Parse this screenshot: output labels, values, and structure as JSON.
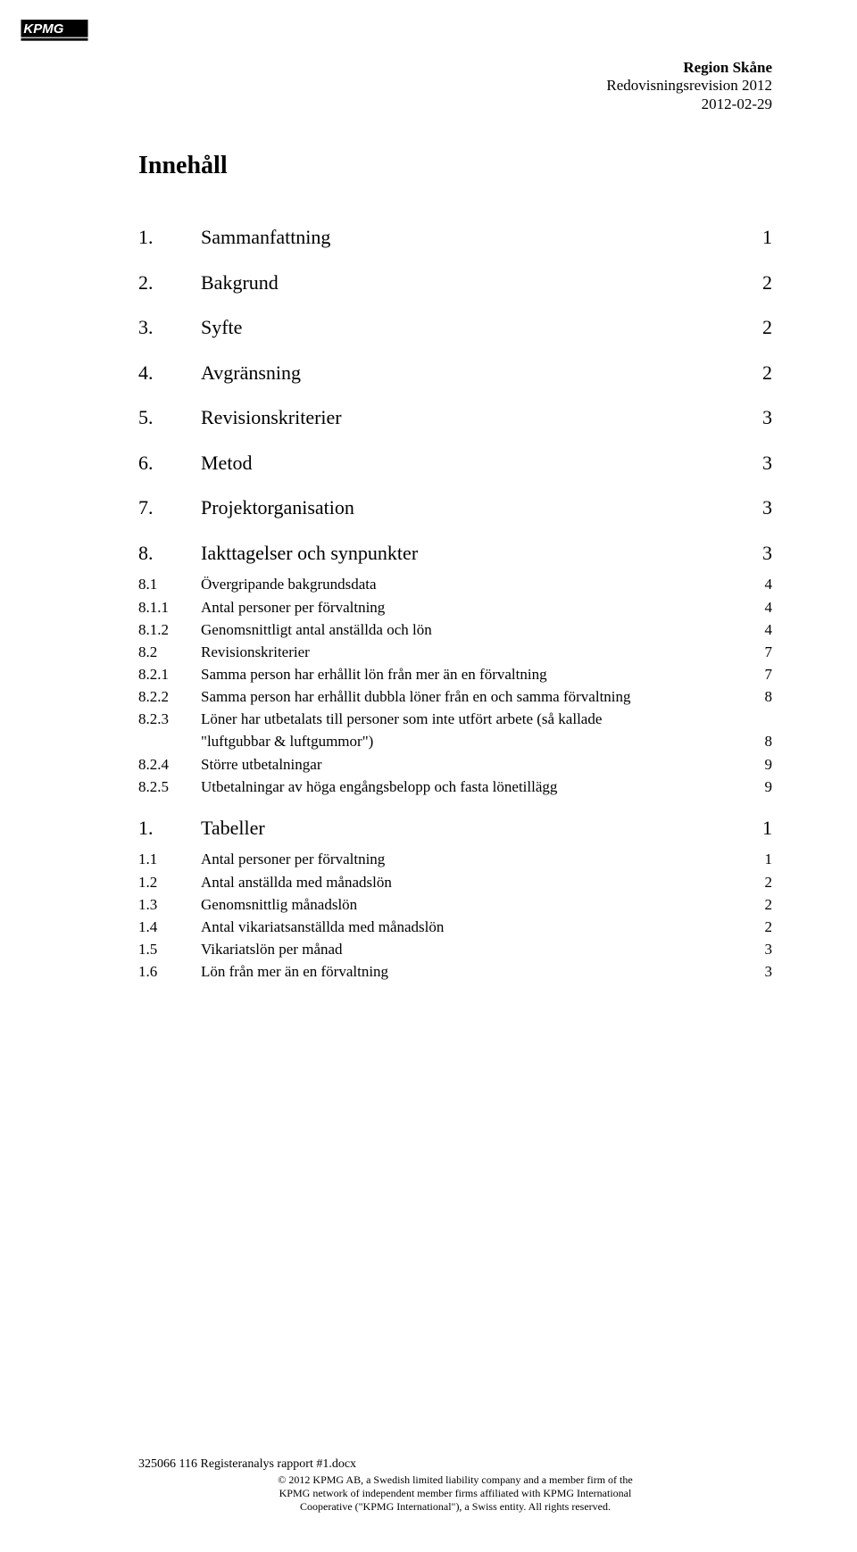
{
  "header": {
    "org": "Region Skåne",
    "report": "Redovisningsrevision 2012",
    "date": "2012-02-29"
  },
  "title": "Innehåll",
  "toc": [
    {
      "level": 1,
      "num": "1.",
      "text": "Sammanfattning",
      "page": "1"
    },
    {
      "level": 1,
      "num": "2.",
      "text": "Bakgrund",
      "page": "2"
    },
    {
      "level": 1,
      "num": "3.",
      "text": "Syfte",
      "page": "2"
    },
    {
      "level": 1,
      "num": "4.",
      "text": "Avgränsning",
      "page": "2"
    },
    {
      "level": 1,
      "num": "5.",
      "text": "Revisionskriterier",
      "page": "3"
    },
    {
      "level": 1,
      "num": "6.",
      "text": "Metod",
      "page": "3"
    },
    {
      "level": 1,
      "num": "7.",
      "text": "Projektorganisation",
      "page": "3"
    },
    {
      "level": 1,
      "num": "8.",
      "text": "Iakttagelser och synpunkter",
      "page": "3"
    },
    {
      "level": 2,
      "num": "8.1",
      "text": "Övergripande bakgrundsdata",
      "page": "4"
    },
    {
      "level": 3,
      "num": "8.1.1",
      "text": "Antal personer per förvaltning",
      "page": "4"
    },
    {
      "level": 3,
      "num": "8.1.2",
      "text": "Genomsnittligt antal anställda och lön",
      "page": "4"
    },
    {
      "level": 2,
      "num": "8.2",
      "text": "Revisionskriterier",
      "page": "7"
    },
    {
      "level": 3,
      "num": "8.2.1",
      "text": "Samma person har erhållit lön från mer än en förvaltning",
      "page": "7"
    },
    {
      "level": 3,
      "num": "8.2.2",
      "text": "Samma person har erhållit dubbla löner från en och samma förvaltning",
      "page": "8"
    },
    {
      "level": 3,
      "num": "8.2.3",
      "text": "Löner har utbetalats till personer som inte utfört arbete (så kallade",
      "text2": "\"luftgubbar & luftgummor\")",
      "page": "8"
    },
    {
      "level": 3,
      "num": "8.2.4",
      "text": "Större utbetalningar",
      "page": "9"
    },
    {
      "level": 3,
      "num": "8.2.5",
      "text": "Utbetalningar av höga engångsbelopp och fasta lönetillägg",
      "page": "9"
    },
    {
      "level": 1,
      "num": "1.",
      "text": "Tabeller",
      "page": "1",
      "gapBefore": true
    },
    {
      "level": 2,
      "num": "1.1",
      "text": "Antal personer per förvaltning",
      "page": "1"
    },
    {
      "level": 2,
      "num": "1.2",
      "text": "Antal anställda med månadslön",
      "page": "2"
    },
    {
      "level": 2,
      "num": "1.3",
      "text": "Genomsnittlig månadslön",
      "page": "2"
    },
    {
      "level": 2,
      "num": "1.4",
      "text": "Antal vikariatsanställda med månadslön",
      "page": "2"
    },
    {
      "level": 2,
      "num": "1.5",
      "text": "Vikariatslön per månad",
      "page": "3"
    },
    {
      "level": 2,
      "num": "1.6",
      "text": "Lön från mer än en förvaltning",
      "page": "3"
    }
  ],
  "footer": {
    "docname": "325066 116 Registeranalys rapport #1.docx",
    "line1": "© 2012 KPMG AB, a Swedish limited liability company and a member firm of the",
    "line2": "KPMG network of independent member firms affiliated with KPMG International",
    "line3": "Cooperative (\"KPMG International\"), a Swiss entity. All rights reserved."
  },
  "colors": {
    "background": "#ffffff",
    "text": "#000000"
  }
}
